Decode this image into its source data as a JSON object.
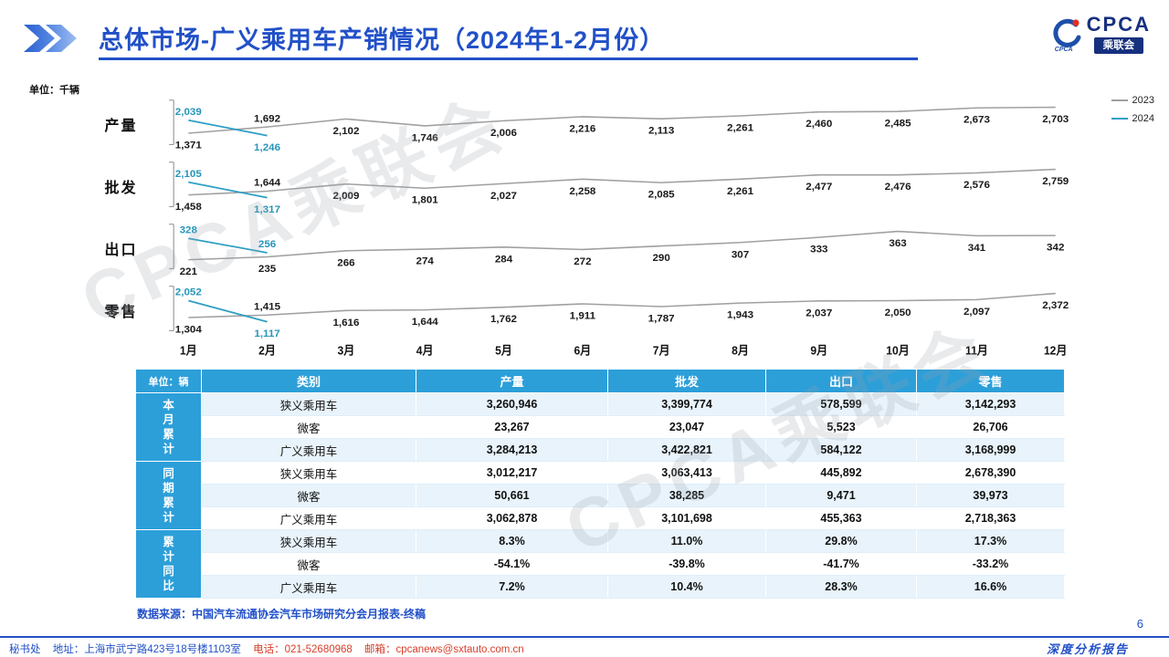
{
  "header": {
    "title": "总体市场-广义乘用车产销情况（2024年1-2月份）",
    "logo": {
      "cpca": "CPCA",
      "badge": "乘联会",
      "sub": "CPCA"
    }
  },
  "unit_label_chart": "单位：千辆",
  "chart_data": {
    "type": "line",
    "x_labels": [
      "1月",
      "2月",
      "3月",
      "4月",
      "5月",
      "6月",
      "7月",
      "8月",
      "9月",
      "10月",
      "11月",
      "12月"
    ],
    "legend": [
      {
        "name": "2023",
        "color": "#A0A0A0"
      },
      {
        "name": "2024",
        "color": "#2E9FC4"
      }
    ],
    "rows": [
      {
        "label": "产量",
        "series": [
          {
            "name": "2023",
            "values": [
              1371,
              1692,
              2102,
              1746,
              2006,
              2216,
              2113,
              2261,
              2460,
              2485,
              2673,
              2703
            ]
          },
          {
            "name": "2024",
            "values": [
              2039,
              1246
            ]
          }
        ]
      },
      {
        "label": "批发",
        "series": [
          {
            "name": "2023",
            "values": [
              1458,
              1644,
              2009,
              1801,
              2027,
              2258,
              2085,
              2261,
              2477,
              2476,
              2576,
              2759
            ]
          },
          {
            "name": "2024",
            "values": [
              2105,
              1317
            ]
          }
        ]
      },
      {
        "label": "出口",
        "series": [
          {
            "name": "2023",
            "values": [
              221,
              235,
              266,
              274,
              284,
              272,
              290,
              307,
              333,
              363,
              341,
              342
            ]
          },
          {
            "name": "2024",
            "values": [
              328,
              256
            ]
          }
        ]
      },
      {
        "label": "零售",
        "series": [
          {
            "name": "2023",
            "values": [
              1304,
              1415,
              1616,
              1644,
              1762,
              1911,
              1787,
              1943,
              2037,
              2050,
              2097,
              2372
            ]
          },
          {
            "name": "2024",
            "values": [
              2052,
              1117
            ]
          }
        ]
      }
    ]
  },
  "table": {
    "unit_header": "单位：辆",
    "columns": [
      "类别",
      "产量",
      "批发",
      "出口",
      "零售"
    ],
    "groups": [
      {
        "label": "本月累计",
        "rows": [
          {
            "category": "狭义乘用车",
            "values": [
              "3,260,946",
              "3,399,774",
              "578,599",
              "3,142,293"
            ]
          },
          {
            "category": "微客",
            "values": [
              "23,267",
              "23,047",
              "5,523",
              "26,706"
            ]
          },
          {
            "category": "广义乘用车",
            "values": [
              "3,284,213",
              "3,422,821",
              "584,122",
              "3,168,999"
            ]
          }
        ]
      },
      {
        "label": "同期累计",
        "rows": [
          {
            "category": "狭义乘用车",
            "values": [
              "3,012,217",
              "3,063,413",
              "445,892",
              "2,678,390"
            ]
          },
          {
            "category": "微客",
            "values": [
              "50,661",
              "38,285",
              "9,471",
              "39,973"
            ]
          },
          {
            "category": "广义乘用车",
            "values": [
              "3,062,878",
              "3,101,698",
              "455,363",
              "2,718,363"
            ]
          }
        ]
      },
      {
        "label": "累计同比",
        "rows": [
          {
            "category": "狭义乘用车",
            "values": [
              "8.3%",
              "11.0%",
              "29.8%",
              "17.3%"
            ]
          },
          {
            "category": "微客",
            "values": [
              "-54.1%",
              "-39.8%",
              "-41.7%",
              "-33.2%"
            ]
          },
          {
            "category": "广义乘用车",
            "values": [
              "7.2%",
              "10.4%",
              "28.3%",
              "16.6%"
            ]
          }
        ]
      }
    ]
  },
  "source": "数据来源：中国汽车流通协会汽车市场研究分会月报表-终稿",
  "footer": {
    "secretariat": "秘书处",
    "address": "地址：上海市武宁路423号18号楼1103室",
    "phone": "电话：021-52680968",
    "email": "邮箱：cpcanews@sxtauto.com.cn",
    "page_number": "6",
    "report_label": "深度分析报告"
  },
  "watermark": "CPCA乘联会",
  "colors": {
    "title_blue": "#2150C8",
    "table_header_blue": "#2C9FD9",
    "stripe_blue": "#E8F3FB",
    "line_2023": "#A0A0A0",
    "line_2024": "#2E9FC4",
    "footer_red": "#D6402C",
    "logo_navy": "#17307E"
  }
}
